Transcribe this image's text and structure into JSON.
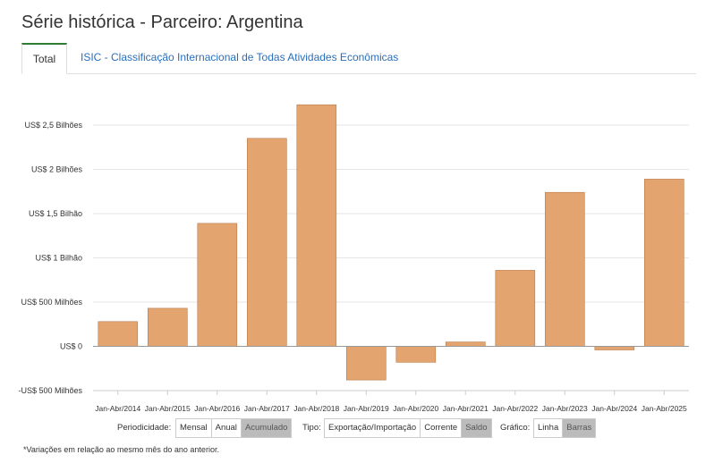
{
  "title": "Série histórica - Parceiro: Argentina",
  "tabs": [
    {
      "label": "Total"
    },
    {
      "label": "ISIC - Classificação Internacional de Todas Atividades Econômicas"
    }
  ],
  "controls": {
    "periodicidade": {
      "label": "Periodicidade:",
      "options": [
        "Mensal",
        "Anual",
        "Acumulado"
      ],
      "selected": "Acumulado"
    },
    "tipo": {
      "label": "Tipo:",
      "options": [
        "Exportação/Importação",
        "Corrente",
        "Saldo"
      ],
      "selected": "Saldo"
    },
    "grafico": {
      "label": "Gráfico:",
      "options": [
        "Linha",
        "Barras"
      ],
      "selected": "Barras"
    }
  },
  "footnote": "*Variações em relação ao mesmo mês do ano anterior.",
  "colors": {
    "bar": "#e3a46f",
    "bar_stroke": "#b87a4a",
    "accent": "#2e7d32",
    "link": "#2a6ebb"
  },
  "chart_data": {
    "type": "bar",
    "categories": [
      "Jan-Abr/2014",
      "Jan-Abr/2015",
      "Jan-Abr/2016",
      "Jan-Abr/2017",
      "Jan-Abr/2018",
      "Jan-Abr/2019",
      "Jan-Abr/2020",
      "Jan-Abr/2021",
      "Jan-Abr/2022",
      "Jan-Abr/2023",
      "Jan-Abr/2024",
      "Jan-Abr/2025"
    ],
    "values": [
      0.28,
      0.43,
      1.39,
      2.35,
      2.73,
      -0.38,
      -0.18,
      0.05,
      0.86,
      1.74,
      -0.04,
      1.89
    ],
    "unit": "bilhões de US$",
    "ylim": [
      -0.5,
      2.5
    ],
    "yticks": [
      {
        "value": 2.5,
        "label": "US$ 2,5 Bilhões"
      },
      {
        "value": 2.0,
        "label": "US$ 2 Bilhões"
      },
      {
        "value": 1.5,
        "label": "US$ 1,5 Bilhão"
      },
      {
        "value": 1.0,
        "label": "US$ 1 Bilhão"
      },
      {
        "value": 0.5,
        "label": "US$ 500 Milhões"
      },
      {
        "value": 0.0,
        "label": "US$ 0"
      },
      {
        "value": -0.5,
        "label": "-US$ 500 Milhões"
      }
    ],
    "grid": true,
    "legend": "none"
  }
}
